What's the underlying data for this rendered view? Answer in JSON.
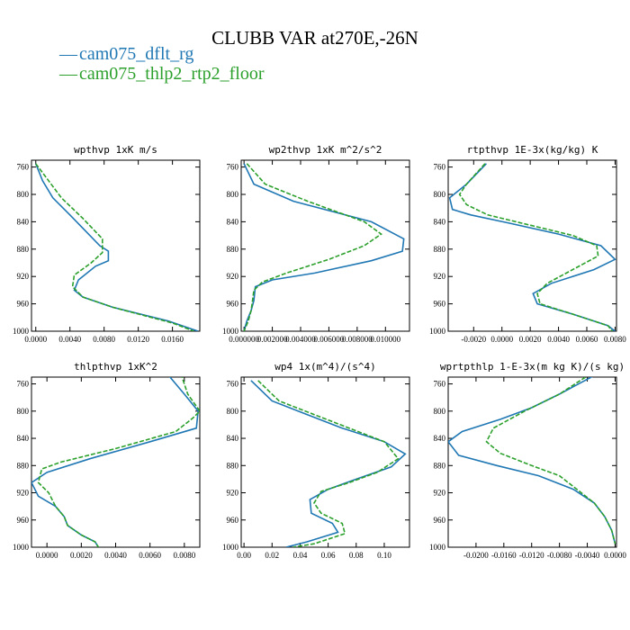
{
  "figure": {
    "title": "CLUBB VAR at270E,-26N",
    "legend": [
      {
        "name": "cam075_dflt_rg",
        "color": "#1f77b4",
        "style": "solid"
      },
      {
        "name": "cam075_thlp2_rtp2_floor",
        "color": "#2ca02c",
        "style": "dashed"
      }
    ]
  },
  "chart_data": [
    {
      "type": "line",
      "title": "wpthvp  1xK m/s",
      "xlabel": "",
      "ylabel": "",
      "xlim": [
        -0.0005,
        0.0192
      ],
      "ylim": [
        1000,
        750
      ],
      "xticks": [
        0.0,
        0.004,
        0.008,
        0.012,
        0.016
      ],
      "xtick_labels": [
        "0.0000",
        "0.0040",
        "0.0080",
        "0.0120",
        "0.0160"
      ],
      "yticks": [
        760,
        800,
        840,
        880,
        920,
        960,
        1000
      ],
      "series": [
        {
          "name": "cam075_dflt_rg",
          "points": [
            [
              0.0,
              755
            ],
            [
              0.0008,
              780
            ],
            [
              0.002,
              805
            ],
            [
              0.004,
              830
            ],
            [
              0.0075,
              875
            ],
            [
              0.0085,
              883
            ],
            [
              0.0085,
              897
            ],
            [
              0.007,
              905
            ],
            [
              0.005,
              925
            ],
            [
              0.0045,
              940
            ],
            [
              0.0055,
              950
            ],
            [
              0.009,
              965
            ],
            [
              0.0155,
              985
            ],
            [
              0.019,
              1000
            ]
          ]
        },
        {
          "name": "cam075_thlp2_rtp2_floor",
          "points": [
            [
              0.0,
              755
            ],
            [
              0.0015,
              780
            ],
            [
              0.003,
              805
            ],
            [
              0.0055,
              835
            ],
            [
              0.0078,
              865
            ],
            [
              0.0078,
              885
            ],
            [
              0.0065,
              900
            ],
            [
              0.0045,
              918
            ],
            [
              0.0043,
              935
            ],
            [
              0.0055,
              950
            ],
            [
              0.009,
              965
            ],
            [
              0.016,
              988
            ],
            [
              0.0185,
              1000
            ]
          ]
        }
      ]
    },
    {
      "type": "line",
      "title": "wp2thvp  1xK m^2/s^2",
      "xlabel": "",
      "ylabel": "",
      "xlim": [
        -0.0002,
        0.0117
      ],
      "ylim": [
        1000,
        750
      ],
      "xticks": [
        0.0,
        0.002,
        0.004,
        0.006,
        0.008,
        0.01
      ],
      "xtick_labels": [
        "0.000000",
        "0.002000",
        "0.004000",
        "0.006000",
        "0.008000",
        "0.010000"
      ],
      "yticks": [
        760,
        800,
        840,
        880,
        920,
        960,
        1000
      ],
      "series": [
        {
          "name": "cam075_dflt_rg",
          "points": [
            [
              0.0,
              755
            ],
            [
              0.0007,
              785
            ],
            [
              0.0035,
              810
            ],
            [
              0.009,
              840
            ],
            [
              0.0113,
              865
            ],
            [
              0.0112,
              883
            ],
            [
              0.009,
              897
            ],
            [
              0.005,
              915
            ],
            [
              0.002,
              925
            ],
            [
              0.0008,
              935
            ],
            [
              0.0007,
              955
            ],
            [
              0.0005,
              970
            ],
            [
              0.0002,
              985
            ],
            [
              0.0,
              1000
            ]
          ]
        },
        {
          "name": "cam075_thlp2_rtp2_floor",
          "points": [
            [
              0.0002,
              755
            ],
            [
              0.0015,
              785
            ],
            [
              0.0045,
              810
            ],
            [
              0.0085,
              840
            ],
            [
              0.0097,
              858
            ],
            [
              0.0085,
              875
            ],
            [
              0.006,
              895
            ],
            [
              0.003,
              915
            ],
            [
              0.0013,
              928
            ],
            [
              0.0007,
              940
            ],
            [
              0.0006,
              955
            ],
            [
              0.0005,
              970
            ],
            [
              0.0003,
              985
            ],
            [
              0.0,
              1000
            ]
          ]
        }
      ]
    },
    {
      "type": "line",
      "title": "rtpthvp  1E-3x(kg/kg) K",
      "xlabel": "",
      "ylabel": "",
      "xlim": [
        -0.0038,
        0.0081
      ],
      "ylim": [
        1000,
        750
      ],
      "xticks": [
        -0.002,
        0.0,
        0.002,
        0.004,
        0.006,
        0.008
      ],
      "xtick_labels": [
        "-0.0020",
        "0.0000",
        "0.0020",
        "0.0040",
        "0.0060",
        "0.0080"
      ],
      "yticks": [
        760,
        800,
        840,
        880,
        920,
        960,
        1000
      ],
      "series": [
        {
          "name": "cam075_dflt_rg",
          "points": [
            [
              -0.0011,
              755
            ],
            [
              -0.0025,
              785
            ],
            [
              -0.0037,
              805
            ],
            [
              -0.0035,
              822
            ],
            [
              -0.0022,
              830
            ],
            [
              0.0005,
              842
            ],
            [
              0.004,
              858
            ],
            [
              0.007,
              875
            ],
            [
              0.008,
              895
            ],
            [
              0.0065,
              910
            ],
            [
              0.0035,
              930
            ],
            [
              0.0022,
              945
            ],
            [
              0.0025,
              960
            ],
            [
              0.005,
              975
            ],
            [
              0.0075,
              992
            ],
            [
              0.008,
              1000
            ]
          ]
        },
        {
          "name": "cam075_thlp2_rtp2_floor",
          "points": [
            [
              -0.0012,
              755
            ],
            [
              -0.0025,
              785
            ],
            [
              -0.003,
              800
            ],
            [
              -0.0025,
              815
            ],
            [
              -0.001,
              830
            ],
            [
              0.002,
              845
            ],
            [
              0.005,
              860
            ],
            [
              0.0067,
              875
            ],
            [
              0.0068,
              890
            ],
            [
              0.005,
              910
            ],
            [
              0.0032,
              930
            ],
            [
              0.0025,
              945
            ],
            [
              0.0027,
              960
            ],
            [
              0.005,
              975
            ],
            [
              0.0075,
              992
            ],
            [
              0.0078,
              1000
            ]
          ]
        }
      ]
    },
    {
      "type": "line",
      "title": "thlpthvp  1xK^2",
      "xlabel": "",
      "ylabel": "",
      "xlim": [
        -0.0009,
        0.0089
      ],
      "ylim": [
        1000,
        750
      ],
      "xticks": [
        0.0,
        0.002,
        0.004,
        0.006,
        0.008
      ],
      "xtick_labels": [
        "0.0000",
        "0.0020",
        "0.0040",
        "0.0060",
        "0.0080"
      ],
      "yticks": [
        760,
        800,
        840,
        880,
        920,
        960,
        1000
      ],
      "series": [
        {
          "name": "cam075_dflt_rg",
          "points": [
            [
              0.007,
              745
            ],
            [
              0.008,
              775
            ],
            [
              0.0088,
              800
            ],
            [
              0.0087,
              825
            ],
            [
              0.006,
              845
            ],
            [
              0.0025,
              870
            ],
            [
              0.0,
              890
            ],
            [
              -0.0009,
              905
            ],
            [
              -0.0005,
              925
            ],
            [
              0.0005,
              940
            ],
            [
              0.001,
              955
            ],
            [
              0.0012,
              968
            ],
            [
              0.002,
              982
            ],
            [
              0.0028,
              992
            ],
            [
              0.003,
              1000
            ]
          ]
        },
        {
          "name": "cam075_thlp2_rtp2_floor",
          "points": [
            [
              0.0078,
              745
            ],
            [
              0.0082,
              775
            ],
            [
              0.0089,
              800
            ],
            [
              0.0085,
              810
            ],
            [
              0.0075,
              830
            ],
            [
              0.004,
              855
            ],
            [
              0.0008,
              875
            ],
            [
              -0.0003,
              885
            ],
            [
              -0.0005,
              905
            ],
            [
              0.0001,
              920
            ],
            [
              0.0005,
              940
            ],
            [
              0.001,
              955
            ],
            [
              0.0012,
              968
            ],
            [
              0.002,
              982
            ],
            [
              0.0028,
              992
            ],
            [
              0.003,
              1000
            ]
          ]
        }
      ]
    },
    {
      "type": "line",
      "title": "wp4  1x(m^4)/(s^4)",
      "xlabel": "",
      "ylabel": "",
      "xlim": [
        -0.002,
        0.118
      ],
      "ylim": [
        1000,
        750
      ],
      "xticks": [
        0.0,
        0.02,
        0.04,
        0.06,
        0.08,
        0.1
      ],
      "xtick_labels": [
        "0.00",
        "0.02",
        "0.04",
        "0.06",
        "0.08",
        "0.10"
      ],
      "yticks": [
        760,
        800,
        840,
        880,
        920,
        960,
        1000
      ],
      "series": [
        {
          "name": "cam075_dflt_rg",
          "points": [
            [
              0.005,
              755
            ],
            [
              0.02,
              785
            ],
            [
              0.045,
              805
            ],
            [
              0.07,
              825
            ],
            [
              0.1,
              845
            ],
            [
              0.115,
              863
            ],
            [
              0.105,
              882
            ],
            [
              0.08,
              900
            ],
            [
              0.06,
              915
            ],
            [
              0.047,
              930
            ],
            [
              0.048,
              950
            ],
            [
              0.063,
              965
            ],
            [
              0.067,
              978
            ],
            [
              0.045,
              992
            ],
            [
              0.03,
              1000
            ]
          ]
        },
        {
          "name": "cam075_thlp2_rtp2_floor",
          "points": [
            [
              0.01,
              755
            ],
            [
              0.025,
              785
            ],
            [
              0.05,
              805
            ],
            [
              0.075,
              825
            ],
            [
              0.1,
              845
            ],
            [
              0.11,
              870
            ],
            [
              0.095,
              890
            ],
            [
              0.075,
              905
            ],
            [
              0.055,
              918
            ],
            [
              0.05,
              935
            ],
            [
              0.055,
              950
            ],
            [
              0.07,
              965
            ],
            [
              0.072,
              980
            ],
            [
              0.05,
              995
            ],
            [
              0.035,
              1000
            ]
          ]
        }
      ]
    },
    {
      "type": "line",
      "title": "wprtpthlp  1-E-3x(m kg K)/(s kg)",
      "xlabel": "",
      "ylabel": "",
      "xlim": [
        -0.024,
        0.0002
      ],
      "ylim": [
        1000,
        750
      ],
      "xticks": [
        -0.02,
        -0.016,
        -0.012,
        -0.008,
        -0.004,
        0.0
      ],
      "xtick_labels": [
        "-0.0200",
        "-0.0160",
        "-0.0120",
        "-0.0080",
        "-0.0040",
        "0.0000"
      ],
      "yticks": [
        760,
        800,
        840,
        880,
        920,
        960,
        1000
      ],
      "series": [
        {
          "name": "cam075_dflt_rg",
          "points": [
            [
              -0.0025,
              745
            ],
            [
              -0.008,
              775
            ],
            [
              -0.012,
              795
            ],
            [
              -0.0165,
              812
            ],
            [
              -0.022,
              830
            ],
            [
              -0.024,
              845
            ],
            [
              -0.0225,
              865
            ],
            [
              -0.017,
              880
            ],
            [
              -0.011,
              895
            ],
            [
              -0.006,
              915
            ],
            [
              -0.003,
              935
            ],
            [
              -0.0015,
              955
            ],
            [
              -0.0005,
              975
            ],
            [
              0.0,
              995
            ]
          ]
        },
        {
          "name": "cam075_thlp2_rtp2_floor",
          "points": [
            [
              -0.0035,
              745
            ],
            [
              -0.008,
              775
            ],
            [
              -0.013,
              800
            ],
            [
              -0.0175,
              825
            ],
            [
              -0.0185,
              845
            ],
            [
              -0.0165,
              862
            ],
            [
              -0.012,
              880
            ],
            [
              -0.008,
              895
            ],
            [
              -0.0055,
              915
            ],
            [
              -0.003,
              935
            ],
            [
              -0.0015,
              955
            ],
            [
              -0.0005,
              975
            ],
            [
              0.0,
              995
            ]
          ]
        }
      ]
    }
  ]
}
